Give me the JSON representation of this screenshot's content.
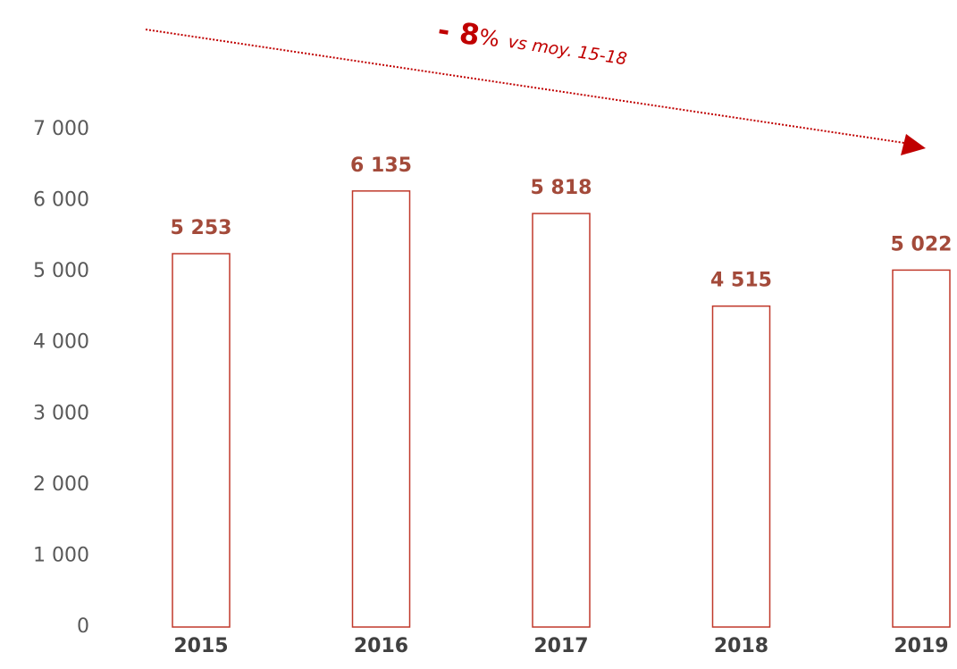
{
  "chart_data": {
    "type": "bar",
    "categories": [
      "2015",
      "2016",
      "2017",
      "2018",
      "2019"
    ],
    "values": [
      5253,
      6135,
      5818,
      4515,
      5022
    ],
    "value_labels": [
      "5 253",
      "6 135",
      "5 818",
      "4 515",
      "5 022"
    ],
    "color": "#c0392b",
    "ylim": [
      0,
      7000
    ],
    "yticks": [
      0,
      {
        "value": 1000,
        "label": "1 000"
      },
      {
        "value": 2000,
        "label": "2 000"
      },
      {
        "value": 3000,
        "label": "3 000"
      },
      {
        "value": 4000,
        "label": "4 000"
      },
      {
        "value": 5000,
        "label": "5 000"
      },
      {
        "value": 6000,
        "label": "6 000"
      },
      {
        "value": 7000,
        "label": "7 000"
      }
    ],
    "grid": false,
    "annotation": [
      "- 8",
      "%",
      "vs moy. 15-18"
    ]
  }
}
